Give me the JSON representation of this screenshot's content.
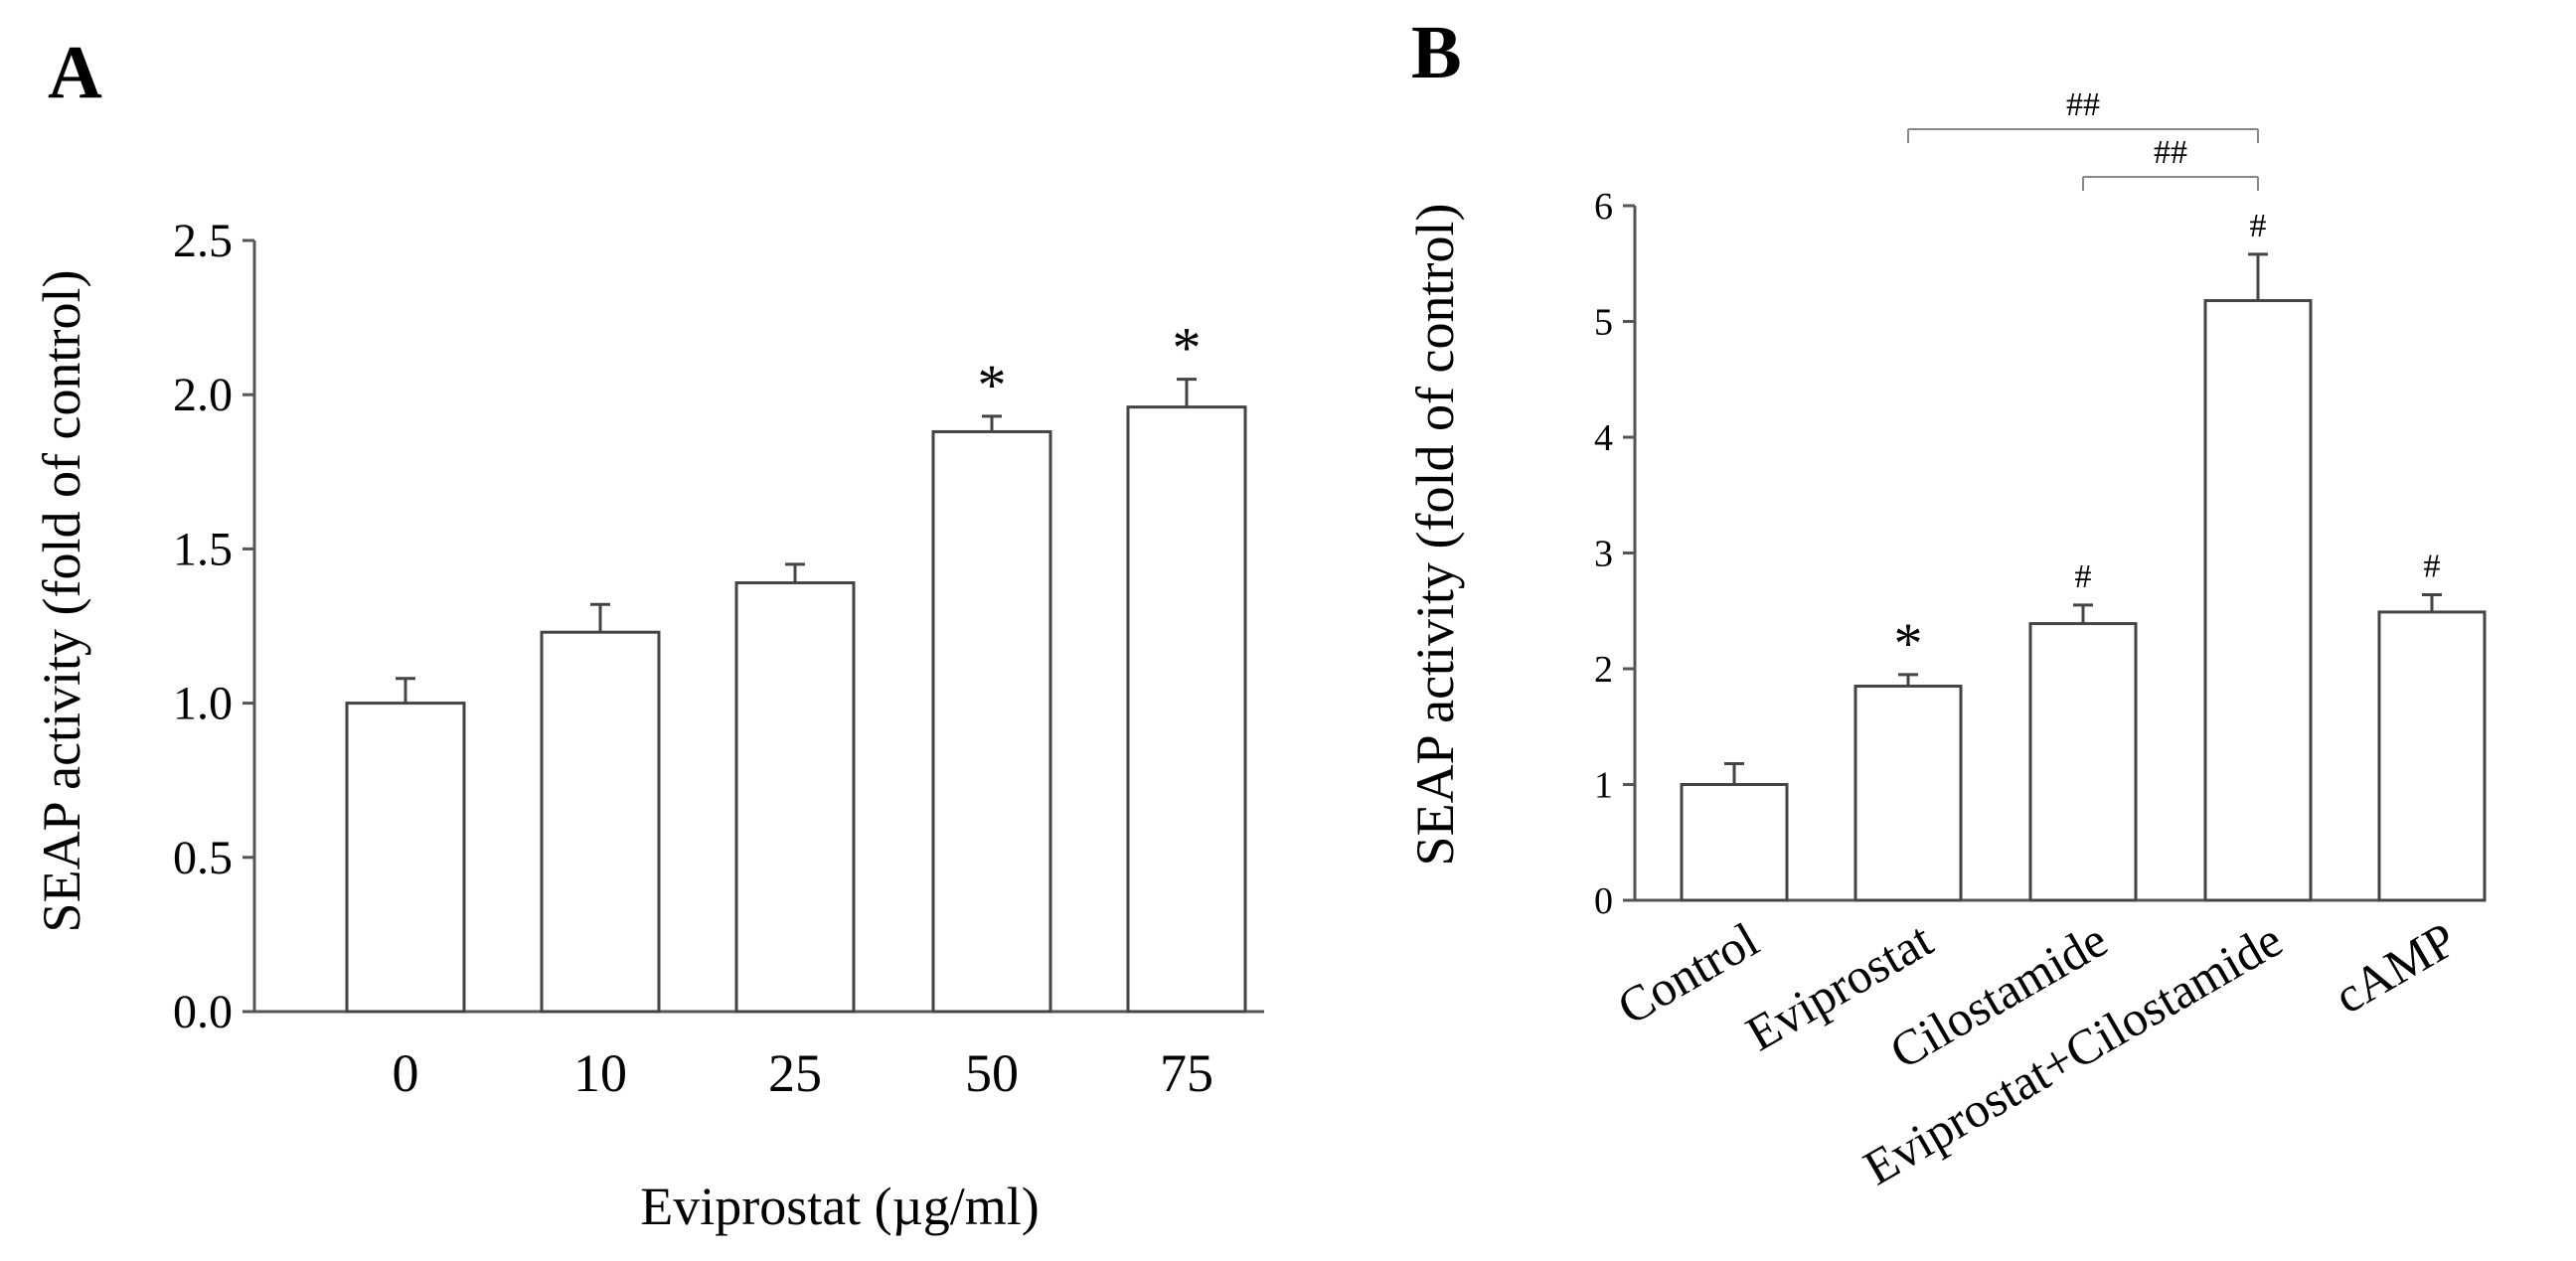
{
  "chart_data": [
    {
      "panel": "A",
      "type": "bar",
      "title": "",
      "xlabel": "Eviprostat  (µg/ml)",
      "ylabel": "SEAP activity  (fold of control)",
      "ylim": [
        0,
        2.5
      ],
      "yticks": [
        "0.0",
        "0.5",
        "1.0",
        "1.5",
        "2.0",
        "2.5"
      ],
      "categories": [
        "0",
        "10",
        "25",
        "50",
        "75"
      ],
      "values": [
        1.0,
        1.23,
        1.39,
        1.88,
        1.96
      ],
      "errors": [
        0.08,
        0.09,
        0.06,
        0.05,
        0.09
      ],
      "annotations": [
        "",
        "",
        "",
        "*",
        "*"
      ]
    },
    {
      "panel": "B",
      "type": "bar",
      "title": "",
      "xlabel": "",
      "ylabel": "SEAP activity  (fold of control)",
      "ylim": [
        0,
        6
      ],
      "yticks": [
        "0",
        "1",
        "2",
        "3",
        "4",
        "5",
        "6"
      ],
      "categories": [
        "Control",
        "Eviprostat",
        "Cilostamide",
        "Eviprostat+Cilostamide",
        "cAMP"
      ],
      "values": [
        1.0,
        1.85,
        2.39,
        5.18,
        2.49
      ],
      "errors": [
        0.18,
        0.1,
        0.16,
        0.4,
        0.15
      ],
      "annotations": [
        "",
        "*",
        "#",
        "#",
        "#"
      ],
      "comparisons": [
        {
          "from": 1,
          "to": 3,
          "label": "##"
        },
        {
          "from": 2,
          "to": 3,
          "label": "##"
        }
      ]
    }
  ]
}
